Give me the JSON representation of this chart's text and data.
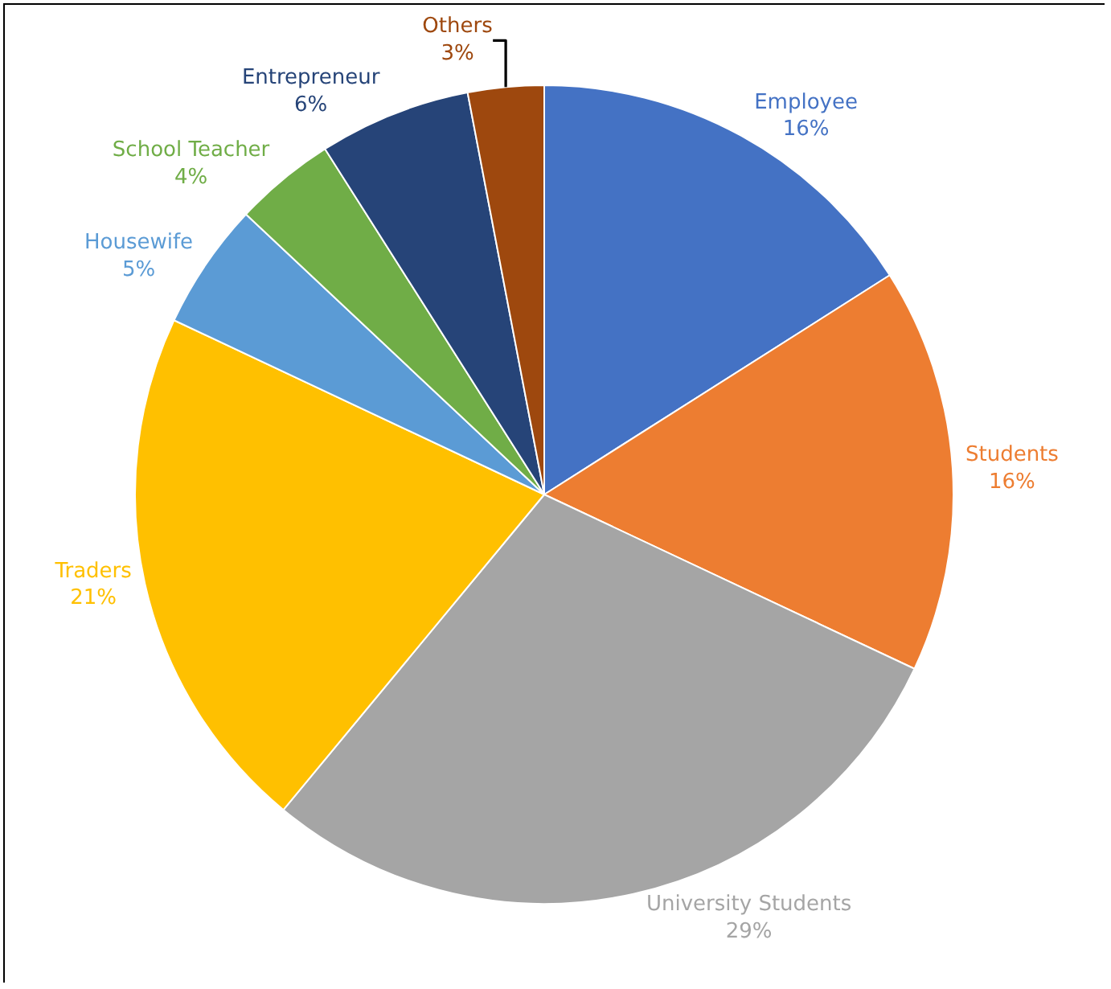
{
  "chart_data": {
    "type": "pie",
    "categories": [
      "Employee",
      "Students",
      "University Students",
      "Traders",
      "Housewife",
      "School Teacher",
      "Entrepreneur",
      "Others"
    ],
    "values": [
      16,
      16,
      29,
      21,
      5,
      4,
      6,
      3
    ],
    "value_labels": [
      "16%",
      "16%",
      "29%",
      "21%",
      "5%",
      "4%",
      "6%",
      "3%"
    ],
    "colors": [
      "#4472c4",
      "#ed7d31",
      "#a5a5a5",
      "#ffc000",
      "#5b9bd5",
      "#70ad47",
      "#264478",
      "#9e480e"
    ],
    "legend": false
  }
}
